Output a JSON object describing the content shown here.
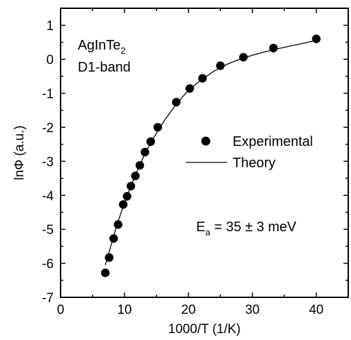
{
  "chart_data": {
    "type": "scatter",
    "xlabel": "1000/T (1/K)",
    "ylabel": "lnΦ (a.u.)",
    "xlim": [
      0,
      45
    ],
    "ylim": [
      -7,
      1.5
    ],
    "x_ticks": [
      0,
      10,
      20,
      30,
      40
    ],
    "y_ticks": [
      1,
      0,
      -1,
      -2,
      -3,
      -4,
      -5,
      -6,
      -7
    ],
    "x_tick_labels": [
      "0",
      "10",
      "20",
      "30",
      "40"
    ],
    "y_tick_labels": [
      "1",
      "0",
      "-1",
      "-2",
      "-3",
      "-4",
      "-5",
      "-6",
      "-7"
    ],
    "grid": false,
    "legend_position": "right",
    "series": [
      {
        "name": "Experimental",
        "kind": "points",
        "color": "#000000",
        "x": [
          7.0,
          7.6,
          8.3,
          9.0,
          9.8,
          10.4,
          11.0,
          11.7,
          12.4,
          13.2,
          14.1,
          15.2,
          18.1,
          20.2,
          22.2,
          25.0,
          28.6,
          33.3,
          40.0
        ],
        "y": [
          -6.28,
          -5.83,
          -5.27,
          -4.86,
          -4.27,
          -4.03,
          -3.73,
          -3.43,
          -3.12,
          -2.73,
          -2.42,
          -2.0,
          -1.26,
          -0.86,
          -0.56,
          -0.19,
          0.06,
          0.33,
          0.6
        ]
      },
      {
        "name": "Theory",
        "kind": "line",
        "color": "#000000",
        "x": [
          7.0,
          7.5,
          8.0,
          8.5,
          9.0,
          10.0,
          11.0,
          12.0,
          13.0,
          14.0,
          15.0,
          16.0,
          17.0,
          18.0,
          19.0,
          20.0,
          22.0,
          24.0,
          26.0,
          28.0,
          30.0,
          32.0,
          34.0,
          36.0,
          38.0,
          40.0
        ],
        "y": [
          -6.05,
          -5.72,
          -5.4,
          -5.07,
          -4.77,
          -4.22,
          -3.72,
          -3.27,
          -2.86,
          -2.5,
          -2.17,
          -1.87,
          -1.6,
          -1.35,
          -1.12,
          -0.92,
          -0.6,
          -0.35,
          -0.15,
          0.0,
          0.12,
          0.22,
          0.31,
          0.39,
          0.47,
          0.56
        ]
      }
    ],
    "annotations": {
      "material_base": "AgInTe",
      "material_sub": "2",
      "band": "D1-band",
      "energy_main": "E",
      "energy_sub": "a",
      "energy_rest": " = 35 ± 3 meV"
    }
  }
}
